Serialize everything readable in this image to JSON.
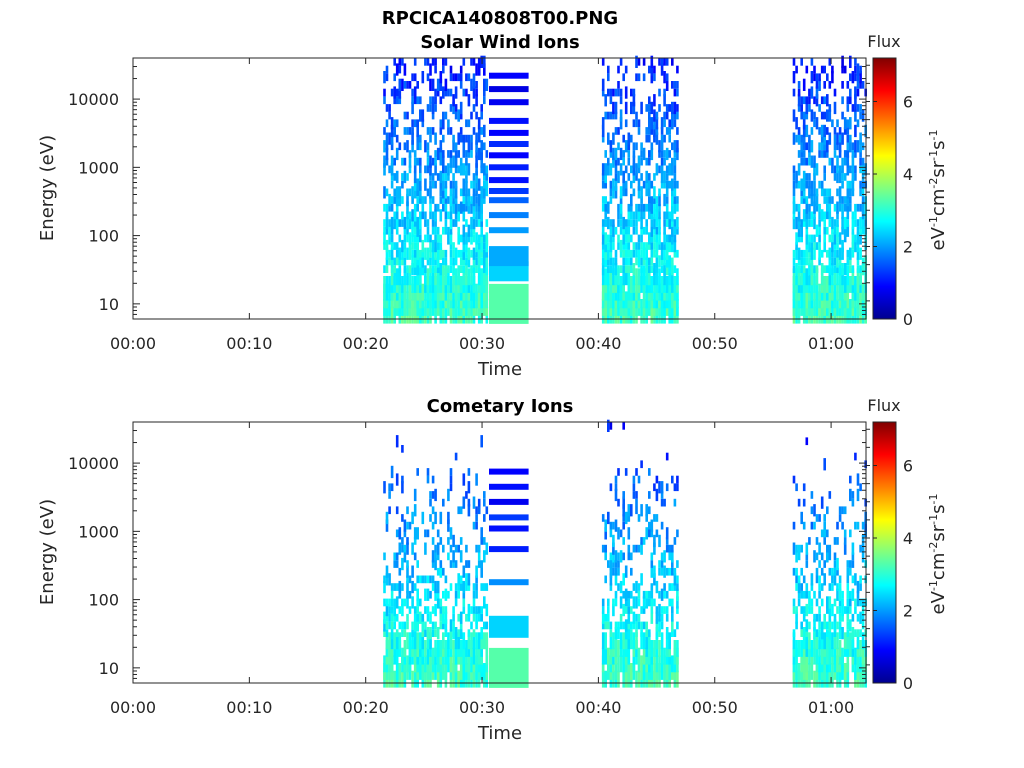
{
  "figure_title": "RPCICA140808T00.PNG",
  "chart_data": [
    {
      "type": "heatmap",
      "title": "Solar Wind Ions",
      "xlabel": "Time",
      "ylabel": "Energy (eV)",
      "x_ticks": [
        "00:00",
        "00:10",
        "00:20",
        "00:30",
        "00:40",
        "00:50",
        "01:00"
      ],
      "x_range_minutes": [
        0,
        63
      ],
      "y_scale": "log",
      "y_ticks": [
        "10",
        "100",
        "1000",
        "10000"
      ],
      "y_range": [
        6,
        40000
      ],
      "colorbar": {
        "title": "Flux",
        "label": "eV-1cm-2sr-1s-1",
        "range": [
          0,
          7.2
        ],
        "ticks": [
          "0",
          "2",
          "4",
          "6"
        ],
        "colormap": "jet"
      },
      "activity_intervals_minutes": [
        [
          21.5,
          30.5
        ],
        [
          40.3,
          46.8
        ],
        [
          56.7,
          63
        ]
      ],
      "block_intervals_minutes": [
        [
          30.6,
          34.0
        ]
      ],
      "block_bands": [
        {
          "energy": 10,
          "flux": 3.3
        },
        {
          "energy": 30,
          "flux": 2.4
        },
        {
          "energy": 50,
          "flux": 2.1
        },
        {
          "energy": 120,
          "flux": 2.0
        },
        {
          "energy": 200,
          "flux": 1.8
        },
        {
          "energy": 330,
          "flux": 1.6
        },
        {
          "energy": 450,
          "flux": 1.3
        },
        {
          "energy": 650,
          "flux": 1.0
        },
        {
          "energy": 1000,
          "flux": 1.1
        },
        {
          "energy": 1500,
          "flux": 0.9
        },
        {
          "energy": 2200,
          "flux": 1.2
        },
        {
          "energy": 3200,
          "flux": 0.9
        },
        {
          "energy": 4800,
          "flux": 1.0
        },
        {
          "energy": 9000,
          "flux": 0.8
        },
        {
          "energy": 14000,
          "flux": 0.7
        },
        {
          "energy": 22000,
          "flux": 0.9
        }
      ]
    },
    {
      "type": "heatmap",
      "title": "Cometary Ions",
      "xlabel": "Time",
      "ylabel": "Energy (eV)",
      "x_ticks": [
        "00:00",
        "00:10",
        "00:20",
        "00:30",
        "00:40",
        "00:50",
        "01:00"
      ],
      "x_range_minutes": [
        0,
        63
      ],
      "y_scale": "log",
      "y_ticks": [
        "10",
        "100",
        "1000",
        "10000"
      ],
      "y_range": [
        6,
        40000
      ],
      "colorbar": {
        "title": "Flux",
        "label": "eV-1cm-2sr-1s-1",
        "range": [
          0,
          7.2
        ],
        "ticks": [
          "0",
          "2",
          "4",
          "6"
        ],
        "colormap": "jet"
      },
      "activity_intervals_minutes": [
        [
          21.5,
          30.5
        ],
        [
          40.3,
          46.8
        ],
        [
          56.7,
          63
        ]
      ],
      "block_intervals_minutes": [
        [
          30.6,
          34.0
        ]
      ],
      "block_bands": [
        {
          "energy": 10,
          "flux": 3.3
        },
        {
          "energy": 40,
          "flux": 2.4
        },
        {
          "energy": 180,
          "flux": 1.9
        },
        {
          "energy": 550,
          "flux": 1.1
        },
        {
          "energy": 1100,
          "flux": 1.0
        },
        {
          "energy": 1600,
          "flux": 1.3
        },
        {
          "energy": 2700,
          "flux": 0.8
        },
        {
          "energy": 4500,
          "flux": 1.0
        },
        {
          "energy": 7500,
          "flux": 0.9
        }
      ]
    }
  ]
}
